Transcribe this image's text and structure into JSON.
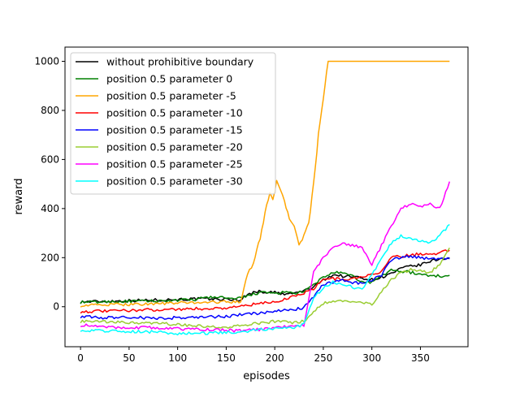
{
  "chart_data": {
    "type": "line",
    "title": "",
    "xlabel": "episodes",
    "ylabel": "reward",
    "xlim": [
      -16,
      399
    ],
    "ylim": [
      -163,
      1058
    ],
    "x_ticks": [
      0,
      50,
      100,
      150,
      200,
      250,
      300,
      350
    ],
    "y_ticks": [
      0,
      200,
      400,
      600,
      800,
      1000
    ],
    "grid": false,
    "legend_position": "top-left",
    "series": [
      {
        "name": "without prohibitive boundary",
        "color": "#000000",
        "points": [
          [
            0,
            20
          ],
          [
            25,
            22
          ],
          [
            50,
            25
          ],
          [
            75,
            27
          ],
          [
            100,
            30
          ],
          [
            125,
            32
          ],
          [
            150,
            30
          ],
          [
            165,
            28
          ],
          [
            170,
            45
          ],
          [
            180,
            62
          ],
          [
            190,
            60
          ],
          [
            200,
            58
          ],
          [
            210,
            50
          ],
          [
            220,
            55
          ],
          [
            230,
            65
          ],
          [
            240,
            80
          ],
          [
            250,
            110
          ],
          [
            260,
            130
          ],
          [
            270,
            125
          ],
          [
            280,
            122
          ],
          [
            290,
            118
          ],
          [
            300,
            110
          ],
          [
            310,
            120
          ],
          [
            320,
            135
          ],
          [
            330,
            155
          ],
          [
            340,
            165
          ],
          [
            350,
            170
          ],
          [
            360,
            185
          ],
          [
            370,
            195
          ],
          [
            380,
            200
          ]
        ]
      },
      {
        "name": "position 0.5 parameter 0",
        "color": "#008000",
        "points": [
          [
            0,
            18
          ],
          [
            25,
            20
          ],
          [
            50,
            22
          ],
          [
            75,
            23
          ],
          [
            100,
            25
          ],
          [
            120,
            30
          ],
          [
            130,
            38
          ],
          [
            140,
            40
          ],
          [
            150,
            35
          ],
          [
            160,
            30
          ],
          [
            170,
            40
          ],
          [
            180,
            55
          ],
          [
            190,
            57
          ],
          [
            200,
            55
          ],
          [
            210,
            58
          ],
          [
            220,
            55
          ],
          [
            230,
            60
          ],
          [
            240,
            90
          ],
          [
            250,
            120
          ],
          [
            260,
            140
          ],
          [
            270,
            135
          ],
          [
            280,
            125
          ],
          [
            290,
            100
          ],
          [
            300,
            100
          ],
          [
            310,
            125
          ],
          [
            320,
            150
          ],
          [
            330,
            145
          ],
          [
            340,
            140
          ],
          [
            350,
            130
          ],
          [
            360,
            128
          ],
          [
            370,
            125
          ],
          [
            380,
            128
          ]
        ]
      },
      {
        "name": "position 0.5 parameter -5",
        "color": "#FFA500",
        "points": [
          [
            0,
            5
          ],
          [
            25,
            8
          ],
          [
            50,
            10
          ],
          [
            75,
            12
          ],
          [
            100,
            15
          ],
          [
            125,
            18
          ],
          [
            150,
            20
          ],
          [
            165,
            22
          ],
          [
            172,
            130
          ],
          [
            178,
            180
          ],
          [
            185,
            280
          ],
          [
            190,
            380
          ],
          [
            195,
            470
          ],
          [
            198,
            440
          ],
          [
            202,
            510
          ],
          [
            206,
            470
          ],
          [
            210,
            430
          ],
          [
            215,
            360
          ],
          [
            220,
            330
          ],
          [
            225,
            250
          ],
          [
            230,
            290
          ],
          [
            235,
            340
          ],
          [
            240,
            500
          ],
          [
            245,
            700
          ],
          [
            250,
            850
          ],
          [
            255,
            1000
          ],
          [
            380,
            1000
          ]
        ]
      },
      {
        "name": "position 0.5 parameter -10",
        "color": "#FF0000",
        "points": [
          [
            0,
            -20
          ],
          [
            25,
            -18
          ],
          [
            50,
            -15
          ],
          [
            75,
            -12
          ],
          [
            100,
            -10
          ],
          [
            125,
            -8
          ],
          [
            150,
            -5
          ],
          [
            160,
            0
          ],
          [
            170,
            5
          ],
          [
            180,
            10
          ],
          [
            190,
            15
          ],
          [
            200,
            20
          ],
          [
            210,
            30
          ],
          [
            220,
            45
          ],
          [
            230,
            55
          ],
          [
            240,
            75
          ],
          [
            250,
            110
          ],
          [
            260,
            115
          ],
          [
            270,
            110
          ],
          [
            280,
            115
          ],
          [
            290,
            120
          ],
          [
            300,
            130
          ],
          [
            310,
            145
          ],
          [
            320,
            200
          ],
          [
            330,
            205
          ],
          [
            340,
            210
          ],
          [
            350,
            215
          ],
          [
            360,
            215
          ],
          [
            370,
            220
          ],
          [
            380,
            230
          ]
        ]
      },
      {
        "name": "position 0.5 parameter -15",
        "color": "#0000FF",
        "points": [
          [
            0,
            -40
          ],
          [
            25,
            -45
          ],
          [
            50,
            -42
          ],
          [
            75,
            -48
          ],
          [
            100,
            -45
          ],
          [
            125,
            -42
          ],
          [
            150,
            -40
          ],
          [
            160,
            -35
          ],
          [
            170,
            -30
          ],
          [
            180,
            -28
          ],
          [
            190,
            -25
          ],
          [
            200,
            -20
          ],
          [
            210,
            -15
          ],
          [
            220,
            -10
          ],
          [
            230,
            -5
          ],
          [
            240,
            40
          ],
          [
            250,
            90
          ],
          [
            260,
            100
          ],
          [
            270,
            110
          ],
          [
            280,
            100
          ],
          [
            290,
            95
          ],
          [
            300,
            110
          ],
          [
            310,
            130
          ],
          [
            320,
            190
          ],
          [
            330,
            200
          ],
          [
            340,
            205
          ],
          [
            350,
            200
          ],
          [
            360,
            195
          ],
          [
            370,
            198
          ],
          [
            380,
            195
          ]
        ]
      },
      {
        "name": "position 0.5 parameter -20",
        "color": "#9ACD32",
        "points": [
          [
            0,
            -60
          ],
          [
            25,
            -62
          ],
          [
            50,
            -65
          ],
          [
            75,
            -68
          ],
          [
            100,
            -72
          ],
          [
            125,
            -80
          ],
          [
            150,
            -85
          ],
          [
            160,
            -80
          ],
          [
            170,
            -75
          ],
          [
            180,
            -70
          ],
          [
            190,
            -65
          ],
          [
            200,
            -60
          ],
          [
            210,
            -62
          ],
          [
            220,
            -65
          ],
          [
            230,
            -60
          ],
          [
            240,
            -20
          ],
          [
            250,
            15
          ],
          [
            260,
            25
          ],
          [
            270,
            20
          ],
          [
            280,
            22
          ],
          [
            290,
            15
          ],
          [
            300,
            10
          ],
          [
            310,
            60
          ],
          [
            320,
            110
          ],
          [
            330,
            140
          ],
          [
            340,
            150
          ],
          [
            350,
            145
          ],
          [
            360,
            140
          ],
          [
            370,
            175
          ],
          [
            380,
            240
          ]
        ]
      },
      {
        "name": "position 0.5 parameter -25",
        "color": "#FF00FF",
        "points": [
          [
            0,
            -75
          ],
          [
            25,
            -82
          ],
          [
            50,
            -85
          ],
          [
            75,
            -85
          ],
          [
            100,
            -90
          ],
          [
            125,
            -92
          ],
          [
            150,
            -95
          ],
          [
            160,
            -98
          ],
          [
            170,
            -96
          ],
          [
            180,
            -94
          ],
          [
            190,
            -90
          ],
          [
            200,
            -85
          ],
          [
            210,
            -82
          ],
          [
            220,
            -80
          ],
          [
            230,
            -75
          ],
          [
            240,
            140
          ],
          [
            250,
            200
          ],
          [
            260,
            240
          ],
          [
            270,
            260
          ],
          [
            280,
            250
          ],
          [
            290,
            240
          ],
          [
            300,
            170
          ],
          [
            310,
            250
          ],
          [
            320,
            330
          ],
          [
            330,
            400
          ],
          [
            340,
            420
          ],
          [
            350,
            410
          ],
          [
            360,
            420
          ],
          [
            370,
            400
          ],
          [
            380,
            510
          ]
        ]
      },
      {
        "name": "position 0.5 parameter -30",
        "color": "#00FFFF",
        "points": [
          [
            0,
            -95
          ],
          [
            25,
            -98
          ],
          [
            50,
            -100
          ],
          [
            75,
            -102
          ],
          [
            100,
            -110
          ],
          [
            125,
            -108
          ],
          [
            150,
            -105
          ],
          [
            160,
            -103
          ],
          [
            170,
            -100
          ],
          [
            180,
            -95
          ],
          [
            190,
            -92
          ],
          [
            200,
            -90
          ],
          [
            210,
            -88
          ],
          [
            220,
            -85
          ],
          [
            230,
            -70
          ],
          [
            240,
            40
          ],
          [
            250,
            75
          ],
          [
            260,
            100
          ],
          [
            270,
            90
          ],
          [
            280,
            80
          ],
          [
            290,
            70
          ],
          [
            300,
            130
          ],
          [
            310,
            200
          ],
          [
            320,
            260
          ],
          [
            330,
            290
          ],
          [
            340,
            280
          ],
          [
            350,
            270
          ],
          [
            360,
            260
          ],
          [
            370,
            290
          ],
          [
            380,
            335
          ]
        ]
      }
    ]
  }
}
